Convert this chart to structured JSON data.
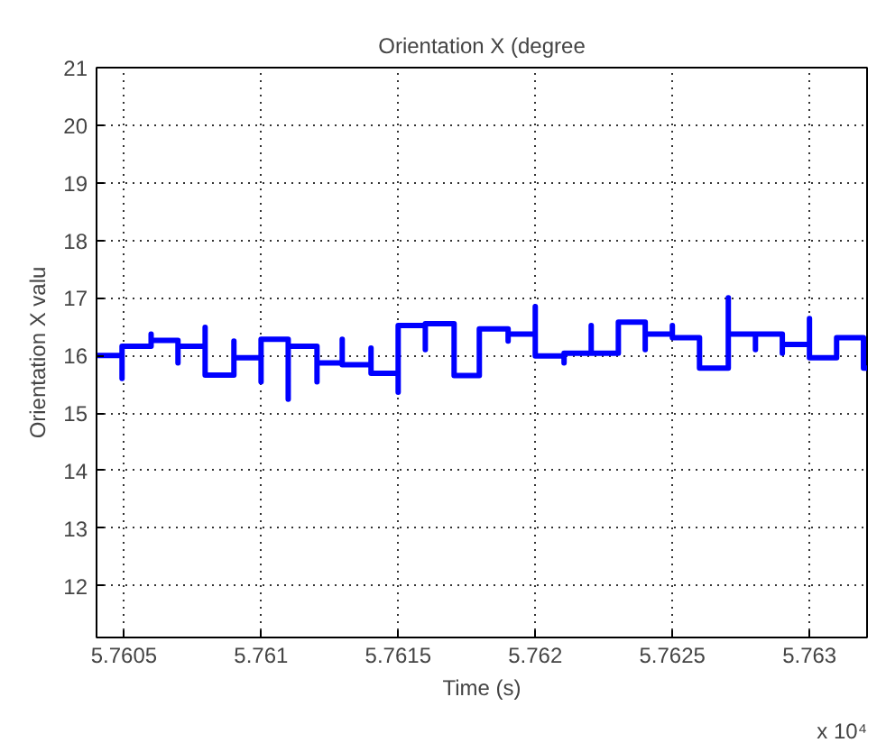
{
  "chart_data": {
    "type": "line",
    "title": "Orientation X (degree",
    "xlabel": "Time (s)",
    "ylabel": "Orientation X valu",
    "annotations": [
      "x 10⁴"
    ],
    "x": [
      5.760401,
      5.760493,
      5.760493,
      5.760493,
      5.760599,
      5.760599,
      5.760599,
      5.760697,
      5.760697,
      5.760697,
      5.760796,
      5.760796,
      5.760796,
      5.760901,
      5.760901,
      5.760901,
      5.761,
      5.761,
      5.761,
      5.761099,
      5.761099,
      5.761099,
      5.761204,
      5.761204,
      5.761204,
      5.761296,
      5.761296,
      5.761296,
      5.761401,
      5.761401,
      5.761401,
      5.7615,
      5.7615,
      5.7615,
      5.761599,
      5.761599,
      5.761599,
      5.761704,
      5.761704,
      5.761796,
      5.761796,
      5.761901,
      5.761901,
      5.761901,
      5.762,
      5.762,
      5.762,
      5.762105,
      5.762105,
      5.762105,
      5.762204,
      5.762204,
      5.762204,
      5.762303,
      5.762303,
      5.762401,
      5.762401,
      5.762401,
      5.7625,
      5.7625,
      5.7625,
      5.762599,
      5.762599,
      5.762704,
      5.762704,
      5.762704,
      5.762803,
      5.762803,
      5.762803,
      5.762901,
      5.762901,
      5.762901,
      5.763,
      5.763,
      5.763,
      5.763099,
      5.763099,
      5.763197,
      5.763197,
      5.76321
    ],
    "series": [
      {
        "color": "#0000ff",
        "values": [
          16.0,
          16.0,
          15.6,
          16.16,
          16.16,
          16.37,
          16.26,
          16.26,
          15.87,
          16.16,
          16.16,
          16.49,
          15.66,
          15.66,
          16.25,
          15.96,
          15.96,
          15.54,
          16.28,
          16.28,
          15.24,
          16.16,
          16.16,
          15.54,
          15.87,
          15.87,
          16.28,
          15.84,
          15.84,
          16.13,
          15.69,
          15.69,
          15.36,
          16.52,
          16.52,
          16.1,
          16.55,
          16.55,
          15.65,
          15.65,
          16.46,
          16.46,
          16.25,
          16.37,
          16.37,
          16.85,
          15.99,
          15.99,
          15.87,
          16.04,
          16.04,
          16.52,
          16.04,
          16.04,
          16.58,
          16.58,
          16.1,
          16.37,
          16.37,
          16.52,
          16.31,
          16.31,
          15.78,
          15.78,
          17.0,
          16.37,
          16.37,
          16.1,
          16.37,
          16.37,
          16.04,
          16.19,
          16.19,
          16.64,
          15.96,
          15.96,
          16.31,
          16.31,
          15.78,
          15.78
        ]
      }
    ],
    "xlim": [
      5.7604,
      5.76321
    ],
    "ylim": [
      11.1,
      21
    ],
    "xticks": [
      5.7605,
      5.761,
      5.7615,
      5.762,
      5.7625,
      5.763
    ],
    "yticks": [
      12,
      13,
      14,
      15,
      16,
      17,
      18,
      19,
      20,
      21
    ],
    "grid": true,
    "line_style": "solid"
  }
}
